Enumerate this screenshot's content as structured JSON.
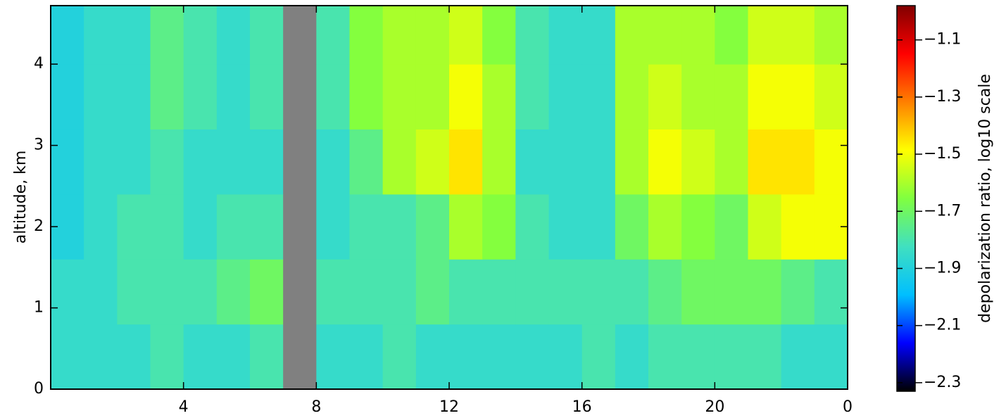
{
  "chart_data": {
    "type": "heatmap",
    "y_label": "altitude, km",
    "xlim": [
      0,
      24
    ],
    "xticks": [
      4,
      8,
      12,
      16,
      20,
      {
        "value": 24,
        "label": "0"
      }
    ],
    "ylim": [
      0,
      4.72
    ],
    "yticks": [
      0,
      1,
      2,
      3,
      4
    ],
    "xbins": [
      0,
      1,
      2,
      3,
      4,
      5,
      6,
      7,
      8,
      9,
      10,
      11,
      12,
      13,
      14,
      15,
      16,
      17,
      18,
      19,
      20,
      21,
      22,
      23,
      24
    ],
    "ybins": [
      0,
      0.8,
      1.6,
      2.4,
      3.2,
      4.0,
      4.72
    ],
    "z": [
      [
        -1.85,
        -1.85,
        -1.85,
        -1.8,
        -1.85,
        -1.85,
        -1.8,
        null,
        -1.85,
        -1.85,
        -1.8,
        -1.85,
        -1.85,
        -1.85,
        -1.85,
        -1.85,
        -1.8,
        -1.85,
        -1.8,
        -1.8,
        -1.8,
        -1.8,
        -1.85,
        -1.85
      ],
      [
        -1.85,
        -1.85,
        -1.8,
        -1.8,
        -1.8,
        -1.75,
        -1.7,
        null,
        -1.8,
        -1.8,
        -1.8,
        -1.75,
        -1.8,
        -1.8,
        -1.8,
        -1.8,
        -1.8,
        -1.8,
        -1.75,
        -1.7,
        -1.7,
        -1.7,
        -1.75,
        -1.8
      ],
      [
        -1.9,
        -1.85,
        -1.8,
        -1.8,
        -1.85,
        -1.8,
        -1.8,
        null,
        -1.85,
        -1.8,
        -1.8,
        -1.75,
        -1.6,
        -1.65,
        -1.8,
        -1.85,
        -1.85,
        -1.7,
        -1.6,
        -1.65,
        -1.7,
        -1.55,
        -1.5,
        -1.5
      ],
      [
        -1.9,
        -1.85,
        -1.85,
        -1.8,
        -1.85,
        -1.85,
        -1.85,
        null,
        -1.85,
        -1.75,
        -1.6,
        -1.55,
        -1.45,
        -1.6,
        -1.85,
        -1.85,
        -1.85,
        -1.6,
        -1.5,
        -1.55,
        -1.6,
        -1.45,
        -1.45,
        -1.5
      ],
      [
        -1.9,
        -1.85,
        -1.85,
        -1.75,
        -1.8,
        -1.85,
        -1.8,
        null,
        -1.8,
        -1.65,
        -1.6,
        -1.6,
        -1.5,
        -1.6,
        -1.8,
        -1.85,
        -1.85,
        -1.6,
        -1.55,
        -1.6,
        -1.6,
        -1.5,
        -1.5,
        -1.55
      ],
      [
        -1.9,
        -1.85,
        -1.85,
        -1.75,
        -1.8,
        -1.85,
        -1.8,
        null,
        -1.8,
        -1.65,
        -1.6,
        -1.6,
        -1.55,
        -1.65,
        -1.8,
        -1.85,
        -1.85,
        -1.6,
        -1.6,
        -1.6,
        -1.65,
        -1.55,
        -1.55,
        -1.6
      ]
    ],
    "missing_color": "#808080",
    "colormap": [
      "#000000",
      "#0000ff",
      "#00bfff",
      "#40e0c0",
      "#80ff40",
      "#ffff00",
      "#ff8000",
      "#ff0000",
      "#800000"
    ],
    "colorbar": {
      "label": "depolarization ratio, log10 scale",
      "lim": [
        -2.33,
        -0.98
      ],
      "ticks": [
        -2.3,
        -2.1,
        -1.9,
        -1.7,
        -1.5,
        -1.3,
        -1.1
      ]
    }
  }
}
